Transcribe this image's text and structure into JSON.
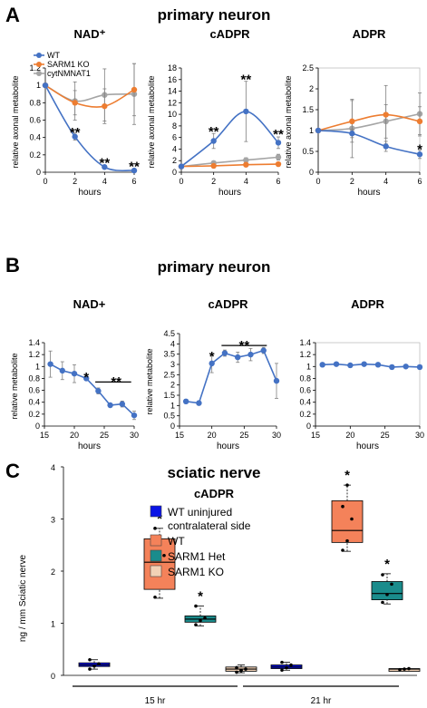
{
  "panels": {
    "A": {
      "letter": "A",
      "title": "primary neuron"
    },
    "B": {
      "letter": "B",
      "title": "primary neuron"
    },
    "C": {
      "letter": "C",
      "title": "sciatic nerve"
    }
  },
  "chart_data": [
    {
      "id": "A1",
      "panel": "A",
      "type": "line",
      "title": "NAD⁺",
      "xlabel": "hours",
      "ylabel": "relative axonal metabolite",
      "x": [
        0,
        2,
        4,
        6
      ],
      "xlim": [
        0,
        6
      ],
      "xticks": [
        0,
        2,
        4,
        6
      ],
      "ylim": [
        0,
        1.2
      ],
      "yticks": [
        "0",
        "0.2",
        "0.4",
        "0.6",
        "0.8",
        "1",
        "1.2"
      ],
      "legend_position": "top-left",
      "series": [
        {
          "name": "WT",
          "color": "#4472c4",
          "values": [
            1,
            0.41,
            0.06,
            0.02
          ],
          "errors": [
            0,
            0.04,
            0.02,
            0.01
          ]
        },
        {
          "name": "SARM1 KO",
          "color": "#ed7d31",
          "values": [
            1,
            0.8,
            0.76,
            0.95
          ],
          "errors": [
            0,
            0.14,
            0.2,
            0.3
          ]
        },
        {
          "name": "cytNMNAT1",
          "color": "#a5a5a5",
          "values": [
            1,
            0.82,
            0.89,
            0.9
          ],
          "errors": [
            0,
            0.22,
            0.3,
            0.35
          ]
        }
      ],
      "annotations": [
        {
          "x": 2,
          "y": 0.47,
          "text": "**"
        },
        {
          "x": 4,
          "y": 0.12,
          "text": "**"
        },
        {
          "x": 6,
          "y": 0.08,
          "text": "**"
        }
      ]
    },
    {
      "id": "A2",
      "panel": "A",
      "type": "line",
      "title": "cADPR",
      "xlabel": "hours",
      "ylabel": "relative axonal metabolite",
      "x": [
        0,
        2,
        4,
        6
      ],
      "xlim": [
        0,
        6
      ],
      "xticks": [
        0,
        2,
        4,
        6
      ],
      "ylim": [
        0,
        18
      ],
      "yticks": [
        "0",
        "2",
        "4",
        "6",
        "8",
        "10",
        "12",
        "14",
        "16",
        "18"
      ],
      "series": [
        {
          "name": "WT",
          "color": "#4472c4",
          "values": [
            1,
            5.4,
            10.5,
            5.1
          ],
          "errors": [
            0,
            1.3,
            5.2,
            1.0
          ]
        },
        {
          "name": "SARM1 KO",
          "color": "#ed7d31",
          "values": [
            1,
            1.1,
            1.3,
            1.4
          ],
          "errors": [
            0,
            0.2,
            0.2,
            0.2
          ]
        },
        {
          "name": "cytNMNAT1",
          "color": "#a5a5a5",
          "values": [
            1,
            1.6,
            2.1,
            2.6
          ],
          "errors": [
            0,
            0.3,
            0.4,
            0.5
          ]
        }
      ],
      "annotations": [
        {
          "x": 2,
          "y": 7.2,
          "text": "**"
        },
        {
          "x": 4,
          "y": 16.2,
          "text": "**"
        },
        {
          "x": 6,
          "y": 6.7,
          "text": "**"
        }
      ]
    },
    {
      "id": "A3",
      "panel": "A",
      "type": "line",
      "title": "ADPR",
      "xlabel": "hours",
      "ylabel": "relative axonal metabolite",
      "x": [
        0,
        2,
        4,
        6
      ],
      "xlim": [
        0,
        6
      ],
      "xticks": [
        0,
        2,
        4,
        6
      ],
      "ylim": [
        0,
        2.5
      ],
      "yticks": [
        "0",
        "0.5",
        "1",
        "1.5",
        "2",
        "2.5"
      ],
      "series": [
        {
          "name": "WT",
          "color": "#4472c4",
          "values": [
            1,
            0.93,
            0.62,
            0.43
          ],
          "errors": [
            0,
            0.1,
            0.12,
            0.1
          ]
        },
        {
          "name": "SARM1 KO",
          "color": "#ed7d31",
          "values": [
            1,
            1.22,
            1.38,
            1.22
          ],
          "errors": [
            0,
            0.5,
            0.7,
            0.35
          ]
        },
        {
          "name": "cytNMNAT1",
          "color": "#a5a5a5",
          "values": [
            1,
            1.05,
            1.22,
            1.4
          ],
          "errors": [
            0,
            0.7,
            0.4,
            0.5
          ]
        }
      ],
      "annotations": [
        {
          "x": 6,
          "y": 0.58,
          "text": "*"
        }
      ]
    },
    {
      "id": "B1",
      "panel": "B",
      "type": "line",
      "title": "NAD+",
      "xlabel": "hours",
      "ylabel": "relative metabolite",
      "x": [
        16,
        18,
        20,
        22,
        24,
        26,
        28,
        30
      ],
      "xlim": [
        15,
        30
      ],
      "xticks": [
        15,
        20,
        25,
        30
      ],
      "ylim": [
        0,
        1.4
      ],
      "yticks": [
        "0",
        "0.2",
        "0.4",
        "0.6",
        "0.8",
        "1",
        "1.2",
        "1.4"
      ],
      "series": [
        {
          "name": "",
          "color": "#4472c4",
          "values": [
            1.04,
            0.93,
            0.88,
            0.8,
            0.59,
            0.35,
            0.37,
            0.18
          ],
          "errors": [
            0.22,
            0.15,
            0.15,
            0.03,
            0.05,
            0.02,
            0.05,
            0.07
          ]
        }
      ],
      "annotations": [
        {
          "x": 22,
          "y": 0.84,
          "text": "*"
        },
        {
          "x": 27,
          "y": 0.76,
          "text": "**"
        }
      ],
      "brackets": [
        {
          "x1": 23.5,
          "x2": 29.5,
          "y": 0.74
        }
      ]
    },
    {
      "id": "B2",
      "panel": "B",
      "type": "line",
      "title": "cADPR",
      "xlabel": "hours",
      "ylabel": "relative metabolite",
      "x": [
        16,
        18,
        20,
        22,
        24,
        26,
        28,
        30
      ],
      "xlim": [
        15,
        30
      ],
      "xticks": [
        15,
        20,
        25,
        30
      ],
      "ylim": [
        0,
        4.5
      ],
      "yticks": [
        "0",
        "0.5",
        "1",
        "1.5",
        "2",
        "2.5",
        "3",
        "3.5",
        "4",
        "4.5"
      ],
      "series": [
        {
          "name": "",
          "color": "#4472c4",
          "values": [
            1.2,
            1.12,
            3.05,
            3.55,
            3.35,
            3.48,
            3.68,
            2.2
          ],
          "errors": [
            0.1,
            0.1,
            0.45,
            0.15,
            0.25,
            0.3,
            0.15,
            0.85
          ]
        }
      ],
      "annotations": [
        {
          "x": 20,
          "y": 3.45,
          "text": "*"
        },
        {
          "x": 25,
          "y": 3.98,
          "text": "**"
        }
      ],
      "brackets": [
        {
          "x1": 21.5,
          "x2": 28.5,
          "y": 3.92
        }
      ]
    },
    {
      "id": "B3",
      "panel": "B",
      "type": "line",
      "title": "ADPR",
      "xlabel": "hours",
      "ylabel": "",
      "x": [
        16,
        18,
        20,
        22,
        24,
        26,
        28,
        30
      ],
      "xlim": [
        15,
        30
      ],
      "xticks": [
        15,
        20,
        25,
        30
      ],
      "ylim": [
        0,
        1.4
      ],
      "yticks": [
        "0",
        "0.2",
        "0.4",
        "0.6",
        "0.8",
        "1",
        "1.2",
        "1.4"
      ],
      "series": [
        {
          "name": "",
          "color": "#4472c4",
          "values": [
            1.03,
            1.04,
            1.02,
            1.04,
            1.03,
            0.99,
            1.0,
            0.99
          ],
          "errors": [
            0.01,
            0.01,
            0.01,
            0.01,
            0.01,
            0.01,
            0.01,
            0.01
          ]
        }
      ],
      "annotations": [],
      "brackets": []
    },
    {
      "id": "C1",
      "panel": "C",
      "type": "box",
      "title": "cADPR",
      "ylabel": "ng / mm Sciatic nerve",
      "ylim": [
        0,
        4
      ],
      "yticks": [
        "0",
        "1",
        "2",
        "3",
        "4"
      ],
      "groups": [
        "15 hr",
        "21 hr"
      ],
      "legend_position": "top-center",
      "legend": [
        {
          "label": "WT uninjured",
          "label2": "contralateral side",
          "color": "#0a14e6"
        },
        {
          "label": "WT",
          "label2": "",
          "color": "#f4825a"
        },
        {
          "label": "SARM1 Het",
          "label2": "",
          "color": "#1a8c8c"
        },
        {
          "label": "SARM1 KO",
          "label2": "",
          "color": "#f2d2b6"
        }
      ],
      "boxes": [
        {
          "group": "15 hr",
          "series": "WT uninjured contralateral side",
          "color": "#0a14e6",
          "min": 0.12,
          "q1": 0.17,
          "median": 0.2,
          "q3": 0.24,
          "max": 0.3,
          "points": [
            0.12,
            0.18,
            0.22,
            0.3
          ]
        },
        {
          "group": "15 hr",
          "series": "WT",
          "color": "#f4825a",
          "min": 1.48,
          "q1": 1.65,
          "median": 2.17,
          "q3": 2.62,
          "max": 2.82,
          "points": [
            1.5,
            1.97,
            2.3,
            2.82
          ]
        },
        {
          "group": "15 hr",
          "series": "SARM1 Het",
          "color": "#1a8c8c",
          "min": 0.95,
          "q1": 1.02,
          "median": 1.08,
          "q3": 1.14,
          "max": 1.33,
          "points": [
            0.97,
            1.05,
            1.1,
            1.33
          ]
        },
        {
          "group": "15 hr",
          "series": "SARM1 KO",
          "color": "#f2d2b6",
          "min": 0.05,
          "q1": 0.08,
          "median": 0.12,
          "q3": 0.16,
          "max": 0.2,
          "points": [
            0.06,
            0.09,
            0.12,
            0.15,
            0.1
          ]
        },
        {
          "group": "21 hr",
          "series": "WT uninjured contralateral side",
          "color": "#0a14e6",
          "min": 0.1,
          "q1": 0.13,
          "median": 0.16,
          "q3": 0.2,
          "max": 0.25,
          "points": [
            0.1,
            0.15,
            0.2,
            0.25
          ]
        },
        {
          "group": "21 hr",
          "series": "WT",
          "color": "#f4825a",
          "min": 2.38,
          "q1": 2.55,
          "median": 2.78,
          "q3": 3.35,
          "max": 3.65,
          "points": [
            2.4,
            2.58,
            3.0,
            3.24,
            3.65
          ]
        },
        {
          "group": "21 hr",
          "series": "SARM1 Het",
          "color": "#1a8c8c",
          "min": 1.37,
          "q1": 1.45,
          "median": 1.57,
          "q3": 1.8,
          "max": 1.95,
          "points": [
            1.4,
            1.55,
            1.75,
            1.93
          ]
        },
        {
          "group": "21 hr",
          "series": "SARM1 KO",
          "color": "#f2d2b6",
          "min": 0.11,
          "q1": 0.11,
          "median": 0.12,
          "q3": 0.13,
          "max": 0.13,
          "points": [
            0.11,
            0.12,
            0.13
          ]
        }
      ],
      "annotations": [
        {
          "box": 1,
          "text": "*"
        },
        {
          "box": 2,
          "text": "*"
        },
        {
          "box": 5,
          "text": "*"
        },
        {
          "box": 6,
          "text": "*"
        }
      ]
    }
  ]
}
